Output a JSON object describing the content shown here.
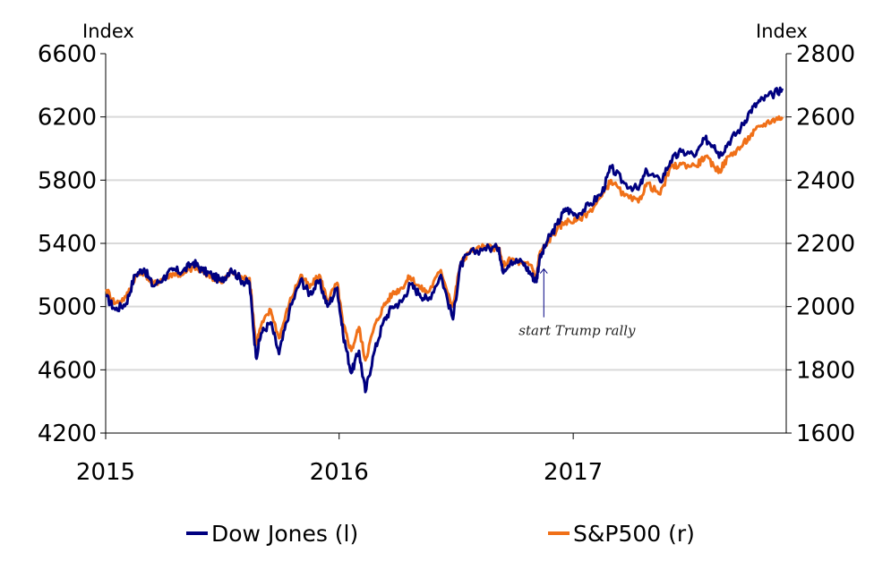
{
  "chart_data": {
    "type": "line",
    "left_axis": {
      "label": "Index",
      "ylim": [
        4200,
        6600
      ],
      "ticks": [
        4200,
        4600,
        5000,
        5400,
        5800,
        6200,
        6600
      ]
    },
    "right_axis": {
      "label": "Index",
      "ylim": [
        1600,
        2800
      ],
      "ticks": [
        1600,
        1800,
        2000,
        2200,
        2400,
        2600,
        2800
      ]
    },
    "x_axis": {
      "start": "2015-01-01",
      "end": "2017-11-30",
      "ticks": [
        "2015",
        "2016",
        "2017"
      ]
    },
    "grid": "horizontal",
    "legend_position": "bottom",
    "annotation": {
      "text": "start Trump rally",
      "x": "2016-11-09",
      "y": 2170
    },
    "series": [
      {
        "name": "Dow Jones (l)",
        "axis": "left",
        "color": "#000080",
        "points": [
          [
            "2015-01-02",
            5060
          ],
          [
            "2015-01-16",
            4980
          ],
          [
            "2015-02-02",
            5020
          ],
          [
            "2015-02-16",
            5200
          ],
          [
            "2015-03-02",
            5240
          ],
          [
            "2015-03-16",
            5130
          ],
          [
            "2015-04-01",
            5180
          ],
          [
            "2015-04-16",
            5230
          ],
          [
            "2015-05-01",
            5220
          ],
          [
            "2015-05-18",
            5280
          ],
          [
            "2015-06-01",
            5230
          ],
          [
            "2015-06-16",
            5200
          ],
          [
            "2015-07-01",
            5160
          ],
          [
            "2015-07-16",
            5240
          ],
          [
            "2015-08-03",
            5160
          ],
          [
            "2015-08-14",
            5150
          ],
          [
            "2015-08-24",
            4680
          ],
          [
            "2015-09-01",
            4830
          ],
          [
            "2015-09-16",
            4900
          ],
          [
            "2015-09-29",
            4700
          ],
          [
            "2015-10-15",
            4970
          ],
          [
            "2015-11-02",
            5170
          ],
          [
            "2015-11-16",
            5080
          ],
          [
            "2015-12-01",
            5160
          ],
          [
            "2015-12-14",
            5000
          ],
          [
            "2015-12-29",
            5120
          ],
          [
            "2016-01-07",
            4830
          ],
          [
            "2016-01-20",
            4580
          ],
          [
            "2016-02-01",
            4720
          ],
          [
            "2016-02-11",
            4460
          ],
          [
            "2016-02-24",
            4700
          ],
          [
            "2016-03-10",
            4900
          ],
          [
            "2016-03-24",
            5000
          ],
          [
            "2016-04-08",
            5030
          ],
          [
            "2016-04-21",
            5140
          ],
          [
            "2016-05-06",
            5080
          ],
          [
            "2016-05-19",
            5040
          ],
          [
            "2016-06-08",
            5200
          ],
          [
            "2016-06-27",
            4920
          ],
          [
            "2016-07-08",
            5250
          ],
          [
            "2016-07-20",
            5330
          ],
          [
            "2016-08-15",
            5370
          ],
          [
            "2016-09-07",
            5370
          ],
          [
            "2016-09-12",
            5230
          ],
          [
            "2016-09-26",
            5290
          ],
          [
            "2016-10-14",
            5280
          ],
          [
            "2016-10-28",
            5200
          ],
          [
            "2016-11-04",
            5160
          ],
          [
            "2016-11-09",
            5290
          ],
          [
            "2016-11-22",
            5420
          ],
          [
            "2016-12-07",
            5520
          ],
          [
            "2016-12-20",
            5620
          ],
          [
            "2017-01-05",
            5580
          ],
          [
            "2017-01-26",
            5640
          ],
          [
            "2017-02-15",
            5720
          ],
          [
            "2017-03-01",
            5880
          ],
          [
            "2017-03-22",
            5780
          ],
          [
            "2017-04-13",
            5740
          ],
          [
            "2017-04-26",
            5860
          ],
          [
            "2017-05-17",
            5790
          ],
          [
            "2017-06-02",
            5920
          ],
          [
            "2017-06-19",
            5980
          ],
          [
            "2017-07-12",
            5960
          ],
          [
            "2017-07-26",
            6060
          ],
          [
            "2017-08-10",
            6020
          ],
          [
            "2017-08-18",
            5960
          ],
          [
            "2017-09-01",
            6040
          ],
          [
            "2017-09-20",
            6130
          ],
          [
            "2017-10-05",
            6240
          ],
          [
            "2017-10-20",
            6300
          ],
          [
            "2017-11-08",
            6340
          ],
          [
            "2017-11-24",
            6380
          ]
        ]
      },
      {
        "name": "S&P500 (r)",
        "axis": "right",
        "color": "#F07018",
        "points": [
          [
            "2015-01-02",
            2055
          ],
          [
            "2015-01-16",
            2010
          ],
          [
            "2015-02-02",
            2030
          ],
          [
            "2015-02-16",
            2095
          ],
          [
            "2015-03-02",
            2110
          ],
          [
            "2015-03-16",
            2070
          ],
          [
            "2015-04-01",
            2090
          ],
          [
            "2015-04-16",
            2105
          ],
          [
            "2015-05-01",
            2100
          ],
          [
            "2015-05-18",
            2125
          ],
          [
            "2015-06-01",
            2110
          ],
          [
            "2015-06-16",
            2095
          ],
          [
            "2015-07-01",
            2075
          ],
          [
            "2015-07-16",
            2110
          ],
          [
            "2015-08-03",
            2090
          ],
          [
            "2015-08-14",
            2090
          ],
          [
            "2015-08-24",
            1880
          ],
          [
            "2015-09-01",
            1940
          ],
          [
            "2015-09-16",
            1990
          ],
          [
            "2015-09-29",
            1900
          ],
          [
            "2015-10-15",
            2010
          ],
          [
            "2015-11-02",
            2100
          ],
          [
            "2015-11-16",
            2060
          ],
          [
            "2015-12-01",
            2100
          ],
          [
            "2015-12-14",
            2020
          ],
          [
            "2015-12-29",
            2075
          ],
          [
            "2016-01-07",
            1945
          ],
          [
            "2016-01-20",
            1860
          ],
          [
            "2016-02-01",
            1935
          ],
          [
            "2016-02-11",
            1830
          ],
          [
            "2016-02-24",
            1930
          ],
          [
            "2016-03-10",
            2000
          ],
          [
            "2016-03-24",
            2040
          ],
          [
            "2016-04-08",
            2060
          ],
          [
            "2016-04-21",
            2095
          ],
          [
            "2016-05-06",
            2060
          ],
          [
            "2016-05-19",
            2045
          ],
          [
            "2016-06-08",
            2115
          ],
          [
            "2016-06-27",
            2000
          ],
          [
            "2016-07-08",
            2130
          ],
          [
            "2016-07-20",
            2170
          ],
          [
            "2016-08-15",
            2190
          ],
          [
            "2016-09-07",
            2185
          ],
          [
            "2016-09-12",
            2130
          ],
          [
            "2016-09-26",
            2150
          ],
          [
            "2016-10-14",
            2135
          ],
          [
            "2016-10-28",
            2130
          ],
          [
            "2016-11-04",
            2085
          ],
          [
            "2016-11-09",
            2165
          ],
          [
            "2016-11-22",
            2205
          ],
          [
            "2016-12-07",
            2245
          ],
          [
            "2016-12-20",
            2270
          ],
          [
            "2017-01-05",
            2270
          ],
          [
            "2017-01-26",
            2300
          ],
          [
            "2017-02-15",
            2350
          ],
          [
            "2017-03-01",
            2400
          ],
          [
            "2017-03-22",
            2350
          ],
          [
            "2017-04-13",
            2330
          ],
          [
            "2017-04-26",
            2390
          ],
          [
            "2017-05-17",
            2355
          ],
          [
            "2017-06-02",
            2440
          ],
          [
            "2017-06-19",
            2450
          ],
          [
            "2017-07-12",
            2445
          ],
          [
            "2017-07-26",
            2475
          ],
          [
            "2017-08-10",
            2440
          ],
          [
            "2017-08-18",
            2430
          ],
          [
            "2017-09-01",
            2475
          ],
          [
            "2017-09-20",
            2505
          ],
          [
            "2017-10-05",
            2540
          ],
          [
            "2017-10-20",
            2570
          ],
          [
            "2017-11-08",
            2590
          ],
          [
            "2017-11-24",
            2600
          ]
        ]
      }
    ]
  }
}
